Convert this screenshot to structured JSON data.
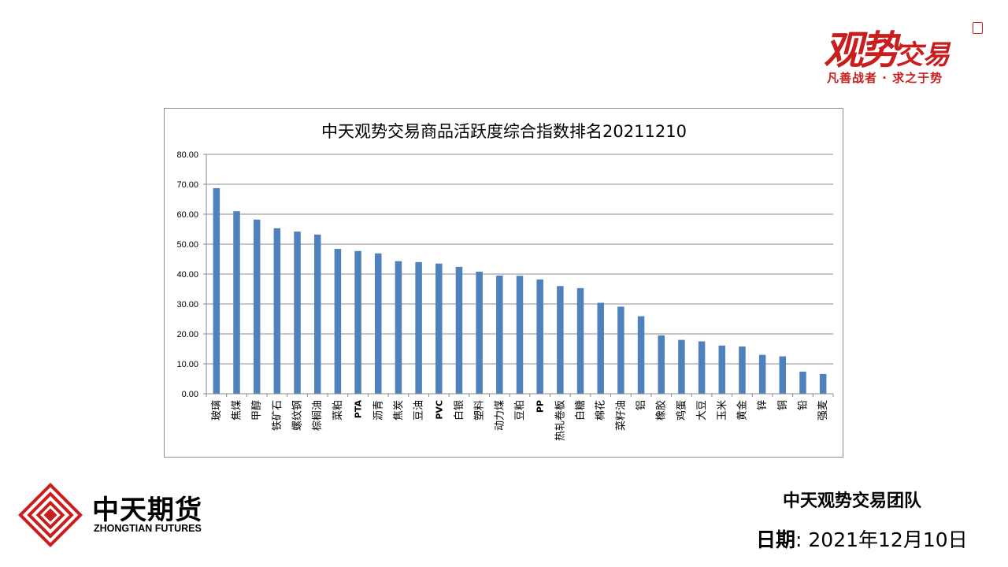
{
  "brand": {
    "main_text": "观势",
    "main_text_small": "交易",
    "slogan": "凡善战者 · 求之于势"
  },
  "company": {
    "name_cn": "中天期货",
    "name_en": "ZHONGTIAN FUTURES",
    "logo_color": "#c81e1e"
  },
  "footer": {
    "team": "中天观势交易团队",
    "date_label": "日期",
    "date_separator": ":",
    "date_value": "2021年12月10日"
  },
  "chart_data": {
    "type": "bar",
    "title": "中天观势交易商品活跃度综合指数排名20211210",
    "xlabel": "",
    "ylabel": "",
    "ylim": [
      0,
      80
    ],
    "yticks": [
      "0.00",
      "10.00",
      "20.00",
      "30.00",
      "40.00",
      "50.00",
      "60.00",
      "70.00",
      "80.00"
    ],
    "grid": true,
    "legend": "none",
    "bar_color": "#4f81bd",
    "categories": [
      "玻璃",
      "焦煤",
      "甲醇",
      "铁矿石",
      "螺纹钢",
      "棕榈油",
      "菜粕",
      "PTA",
      "沥青",
      "焦炭",
      "豆油",
      "PVC",
      "白银",
      "塑料",
      "动力煤",
      "豆粕",
      "PP",
      "热轧卷板",
      "白糖",
      "棉花",
      "菜籽油",
      "铝",
      "橡胶",
      "鸡蛋",
      "大豆",
      "玉米",
      "黄金",
      "锌",
      "铜",
      "铅",
      "强麦"
    ],
    "values": [
      68.7,
      61.0,
      58.2,
      55.3,
      54.2,
      53.2,
      48.4,
      47.7,
      46.9,
      44.3,
      44.0,
      43.5,
      42.4,
      40.8,
      39.5,
      39.4,
      38.2,
      36.0,
      35.3,
      30.4,
      29.1,
      25.9,
      19.5,
      18.0,
      17.5,
      16.1,
      15.8,
      13.0,
      12.5,
      7.4,
      6.6
    ]
  }
}
